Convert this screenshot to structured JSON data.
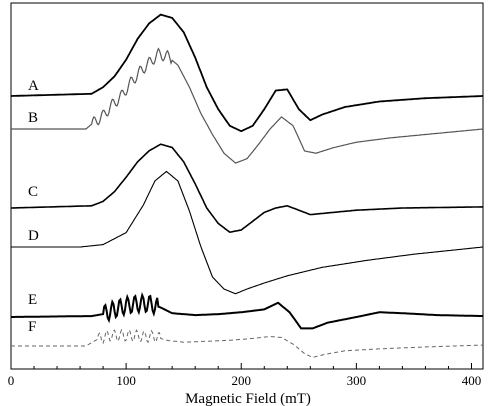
{
  "chart_data": {
    "type": "line",
    "title": "",
    "xlabel": "Magnetic Field (mT)",
    "ylabel": "",
    "xlim": [
      0,
      410
    ],
    "x_ticks": [
      0,
      100,
      200,
      300,
      400
    ],
    "tick_labels": [
      "0",
      "100",
      "200",
      "300",
      "400"
    ],
    "grid": false,
    "legend": "none",
    "series": [
      {
        "name": "A",
        "baseline_offset": 0,
        "points": [
          [
            0,
            0
          ],
          [
            70,
            0.02
          ],
          [
            80,
            0.08
          ],
          [
            90,
            0.18
          ],
          [
            100,
            0.33
          ],
          [
            110,
            0.52
          ],
          [
            120,
            0.66
          ],
          [
            130,
            0.74
          ],
          [
            140,
            0.71
          ],
          [
            150,
            0.58
          ],
          [
            160,
            0.35
          ],
          [
            170,
            0.08
          ],
          [
            180,
            -0.12
          ],
          [
            190,
            -0.27
          ],
          [
            200,
            -0.32
          ],
          [
            210,
            -0.27
          ],
          [
            220,
            -0.12
          ],
          [
            230,
            0.05
          ],
          [
            240,
            0.06
          ],
          [
            250,
            -0.12
          ],
          [
            260,
            -0.22
          ],
          [
            270,
            -0.17
          ],
          [
            290,
            -0.1
          ],
          [
            320,
            -0.05
          ],
          [
            360,
            -0.02
          ],
          [
            410,
            0
          ]
        ]
      },
      {
        "name": "B",
        "baseline_offset": 0,
        "points": [
          [
            0,
            0
          ],
          [
            65,
            0
          ],
          [
            72,
            0.06
          ],
          [
            80,
            0.12
          ],
          [
            88,
            0.22
          ],
          [
            96,
            0.3
          ],
          [
            104,
            0.42
          ],
          [
            112,
            0.52
          ],
          [
            120,
            0.6
          ],
          [
            128,
            0.68
          ],
          [
            136,
            0.66
          ],
          [
            145,
            0.58
          ],
          [
            155,
            0.38
          ],
          [
            165,
            0.14
          ],
          [
            175,
            -0.05
          ],
          [
            185,
            -0.22
          ],
          [
            195,
            -0.31
          ],
          [
            205,
            -0.27
          ],
          [
            215,
            -0.14
          ],
          [
            225,
            0.0
          ],
          [
            235,
            0.11
          ],
          [
            245,
            0.03
          ],
          [
            255,
            -0.2
          ],
          [
            265,
            -0.22
          ],
          [
            280,
            -0.17
          ],
          [
            300,
            -0.12
          ],
          [
            330,
            -0.08
          ],
          [
            370,
            -0.04
          ],
          [
            410,
            0
          ]
        ]
      },
      {
        "name": "C",
        "baseline_offset": 0,
        "points": [
          [
            0,
            0
          ],
          [
            70,
            0.02
          ],
          [
            80,
            0.06
          ],
          [
            90,
            0.15
          ],
          [
            100,
            0.28
          ],
          [
            110,
            0.42
          ],
          [
            120,
            0.52
          ],
          [
            130,
            0.58
          ],
          [
            140,
            0.55
          ],
          [
            150,
            0.42
          ],
          [
            160,
            0.22
          ],
          [
            170,
            0.0
          ],
          [
            180,
            -0.14
          ],
          [
            190,
            -0.22
          ],
          [
            200,
            -0.2
          ],
          [
            210,
            -0.12
          ],
          [
            220,
            -0.04
          ],
          [
            230,
            0.0
          ],
          [
            240,
            0.02
          ],
          [
            250,
            -0.02
          ],
          [
            260,
            -0.06
          ],
          [
            280,
            -0.04
          ],
          [
            300,
            -0.02
          ],
          [
            340,
            0
          ],
          [
            410,
            0.01
          ]
        ]
      },
      {
        "name": "D",
        "baseline_offset": 0,
        "points": [
          [
            0,
            0
          ],
          [
            60,
            0
          ],
          [
            80,
            0.02
          ],
          [
            100,
            0.12
          ],
          [
            115,
            0.35
          ],
          [
            125,
            0.55
          ],
          [
            135,
            0.63
          ],
          [
            145,
            0.55
          ],
          [
            155,
            0.3
          ],
          [
            165,
            0.0
          ],
          [
            175,
            -0.25
          ],
          [
            185,
            -0.35
          ],
          [
            195,
            -0.39
          ],
          [
            205,
            -0.35
          ],
          [
            220,
            -0.3
          ],
          [
            240,
            -0.24
          ],
          [
            270,
            -0.17
          ],
          [
            310,
            -0.11
          ],
          [
            350,
            -0.06
          ],
          [
            410,
            0
          ]
        ]
      },
      {
        "name": "E",
        "baseline_offset": 0,
        "points": [
          [
            0,
            0
          ],
          [
            70,
            0.01
          ],
          [
            80,
            0.03
          ],
          [
            90,
            0.08
          ],
          [
            100,
            0.12
          ],
          [
            110,
            0.14
          ],
          [
            120,
            0.14
          ],
          [
            130,
            0.1
          ],
          [
            140,
            0.04
          ],
          [
            160,
            0.02
          ],
          [
            180,
            0.03
          ],
          [
            200,
            0.05
          ],
          [
            220,
            0.08
          ],
          [
            232,
            0.15
          ],
          [
            242,
            0.05
          ],
          [
            252,
            -0.12
          ],
          [
            262,
            -0.12
          ],
          [
            275,
            -0.06
          ],
          [
            300,
            0.0
          ],
          [
            320,
            0.05
          ],
          [
            340,
            0.04
          ],
          [
            370,
            0.02
          ],
          [
            410,
            0.01
          ]
        ]
      },
      {
        "name": "F",
        "baseline_offset": 0,
        "points": [
          [
            0,
            0
          ],
          [
            65,
            0
          ],
          [
            75,
            0.07
          ],
          [
            85,
            0.11
          ],
          [
            95,
            0.11
          ],
          [
            105,
            0.11
          ],
          [
            115,
            0.1
          ],
          [
            125,
            0.1
          ],
          [
            135,
            0.06
          ],
          [
            150,
            0.04
          ],
          [
            170,
            0.05
          ],
          [
            190,
            0.06
          ],
          [
            210,
            0.08
          ],
          [
            225,
            0.1
          ],
          [
            235,
            0.09
          ],
          [
            245,
            0.02
          ],
          [
            255,
            -0.08
          ],
          [
            262,
            -0.12
          ],
          [
            272,
            -0.09
          ],
          [
            290,
            -0.05
          ],
          [
            320,
            -0.03
          ],
          [
            360,
            -0.01
          ],
          [
            410,
            0.01
          ]
        ]
      }
    ],
    "colors": {
      "dark": "#000000",
      "medium": "#555555",
      "dashed": "#666666"
    }
  }
}
